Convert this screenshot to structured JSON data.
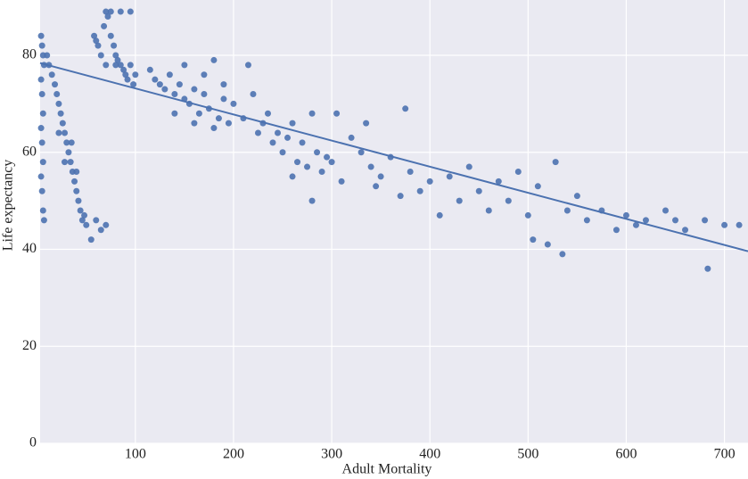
{
  "chart_data": {
    "type": "scatter",
    "x_label": "Adult Mortality",
    "y_label": "Life expectancy",
    "xlim": [
      3,
      724
    ],
    "ylim": [
      0,
      91.4
    ],
    "xticks": [
      100,
      200,
      300,
      400,
      500,
      600,
      700
    ],
    "yticks": [
      0,
      20,
      40,
      60,
      80
    ],
    "grid": true,
    "color": "#4c72b0",
    "x": [
      4,
      5,
      6,
      7,
      4,
      5,
      6,
      4,
      5,
      6,
      4,
      5,
      6,
      7,
      10,
      12,
      15,
      18,
      20,
      22,
      24,
      26,
      28,
      30,
      32,
      34,
      36,
      38,
      40,
      42,
      44,
      46,
      48,
      50,
      55,
      60,
      65,
      70,
      22,
      28,
      35,
      40,
      58,
      60,
      62,
      65,
      68,
      70,
      72,
      75,
      78,
      80,
      82,
      85,
      88,
      90,
      92,
      95,
      98,
      100,
      75,
      85,
      95,
      80,
      70,
      115,
      120,
      125,
      130,
      135,
      140,
      145,
      150,
      155,
      160,
      165,
      170,
      175,
      180,
      185,
      190,
      195,
      200,
      150,
      170,
      190,
      140,
      160,
      180,
      210,
      215,
      220,
      225,
      230,
      235,
      240,
      245,
      250,
      255,
      260,
      265,
      270,
      275,
      280,
      285,
      290,
      295,
      300,
      260,
      280,
      305,
      310,
      320,
      330,
      335,
      340,
      345,
      350,
      360,
      370,
      375,
      380,
      390,
      400,
      410,
      420,
      430,
      440,
      450,
      460,
      470,
      480,
      490,
      500,
      505,
      510,
      520,
      528,
      535,
      540,
      550,
      560,
      575,
      590,
      600,
      610,
      620,
      640,
      650,
      660,
      680,
      683,
      700,
      715
    ],
    "values": [
      84,
      82,
      80,
      78,
      75,
      72,
      68,
      65,
      62,
      58,
      55,
      52,
      48,
      46,
      80,
      78,
      76,
      74,
      72,
      70,
      68,
      66,
      64,
      62,
      60,
      58,
      56,
      54,
      52,
      50,
      48,
      46,
      47,
      45,
      42,
      46,
      44,
      45,
      64,
      58,
      62,
      56,
      84,
      83,
      82,
      80,
      86,
      89,
      88,
      84,
      82,
      80,
      79,
      78,
      77,
      76,
      75,
      78,
      74,
      76,
      89,
      89,
      89,
      78,
      78,
      77,
      75,
      74,
      73,
      76,
      72,
      74,
      71,
      70,
      73,
      68,
      72,
      69,
      79,
      67,
      71,
      66,
      70,
      78,
      76,
      74,
      68,
      66,
      65,
      67,
      78,
      72,
      64,
      66,
      68,
      62,
      64,
      60,
      63,
      66,
      58,
      62,
      57,
      68,
      60,
      56,
      59,
      58,
      55,
      50,
      68,
      54,
      63,
      60,
      66,
      57,
      53,
      55,
      59,
      51,
      69,
      56,
      52,
      54,
      47,
      55,
      50,
      57,
      52,
      48,
      54,
      50,
      56,
      47,
      42,
      53,
      41,
      58,
      39,
      48,
      51,
      46,
      48,
      44,
      47,
      45,
      46,
      48,
      46,
      44,
      46,
      36,
      45,
      45
    ],
    "fit": {
      "x": [
        3,
        724
      ],
      "values": [
        78.4,
        39.6
      ]
    }
  }
}
